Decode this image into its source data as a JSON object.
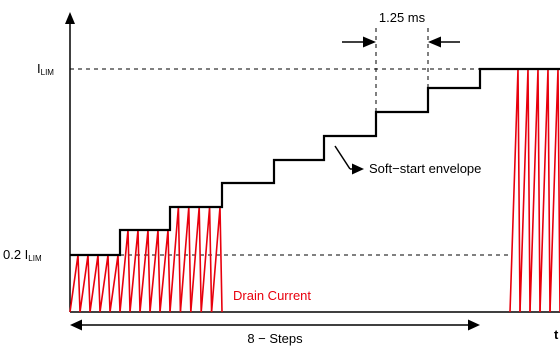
{
  "colors": {
    "drain_current": "#e8000d",
    "envelope": "#000000",
    "guide": "#000000"
  },
  "labels": {
    "ilim_main": "I",
    "ilim_sub": "LIM",
    "ilim02_main": "0.2 I",
    "ilim02_sub": "LIM",
    "time_interval": "1.25 ms",
    "soft_start": "Soft−start envelope",
    "drain_current": "Drain Current",
    "steps": "8 − Steps",
    "time_axis": "t"
  },
  "soft_start_steps": {
    "count": 8,
    "start_level_fraction_of_ilim": 0.2,
    "end_level_fraction_of_ilim": 1.0
  },
  "icons": {
    "y_axis": "arrow-up-icon",
    "steps_span": "double-arrow-icon",
    "interval_markers": "arrows-inward-icon",
    "envelope_pointer": "arrow-right-icon"
  }
}
